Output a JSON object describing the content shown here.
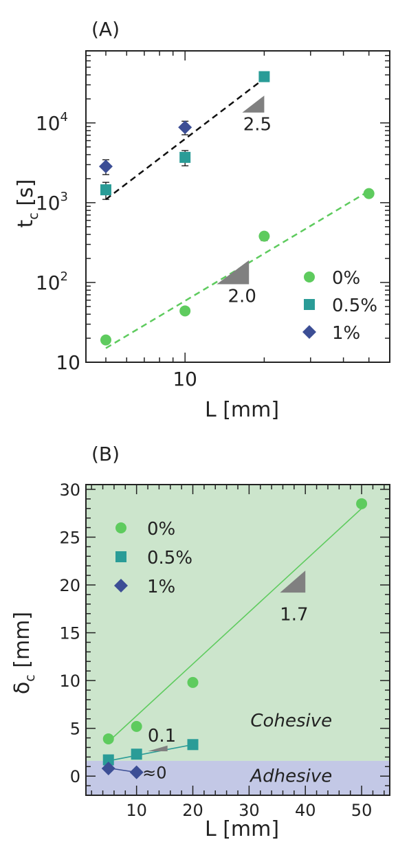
{
  "chart_data": [
    {
      "panel": "(A)",
      "type": "scatter",
      "xscale": "log",
      "yscale": "log",
      "xlabel": "L [mm]",
      "ylabel": {
        "main": "t",
        "sub": "c",
        "unit": " [s]"
      },
      "xlim": [
        4.2,
        60
      ],
      "ylim": [
        10,
        80000
      ],
      "xtick_labels": [
        {
          "value": 10,
          "label": "10"
        }
      ],
      "ytick_labels": [
        {
          "value": 10,
          "label": "10",
          "exp": ""
        },
        {
          "value": 100,
          "label": "10",
          "exp": "2"
        },
        {
          "value": 1000,
          "label": "10",
          "exp": "3"
        },
        {
          "value": 10000,
          "label": "10",
          "exp": "4"
        }
      ],
      "legend_position": "lower-right",
      "series": [
        {
          "name": "0%",
          "color": "#5ecb5e",
          "marker": "circle",
          "points": [
            {
              "x": 5,
              "y": 19
            },
            {
              "x": 10,
              "y": 44
            },
            {
              "x": 20,
              "y": 380,
              "err": 45
            },
            {
              "x": 50,
              "y": 1300
            }
          ]
        },
        {
          "name": "0.5%",
          "color": "#2a9c97",
          "marker": "square",
          "points": [
            {
              "x": 5,
              "y": 1450,
              "err": 350
            },
            {
              "x": 10,
              "y": 3700,
              "err": 800
            },
            {
              "x": 20,
              "y": 38000
            }
          ]
        },
        {
          "name": "1%",
          "color": "#3c4e95",
          "marker": "diamond",
          "points": [
            {
              "x": 5,
              "y": 2850,
              "err": 600
            },
            {
              "x": 10,
              "y": 8800,
              "err": 1700
            }
          ]
        }
      ],
      "fits": [
        {
          "color": "#111111",
          "from": [
            5,
            1100
          ],
          "to": [
            20,
            36000
          ]
        },
        {
          "color": "#5ecb5e",
          "from": [
            5,
            15
          ],
          "to": [
            50,
            1400
          ]
        }
      ],
      "slopes": [
        {
          "label": "2.5",
          "corner": [
            20,
            13500
          ],
          "x_left": 16.5,
          "y_top": 22000
        },
        {
          "label": "2.0",
          "corner": [
            17.5,
            95
          ],
          "x_left": 13.2,
          "y_top": 190
        }
      ]
    },
    {
      "panel": "(B)",
      "type": "scatter",
      "xlabel": "L [mm]",
      "ylabel": {
        "main": "δ",
        "sub": "c",
        "unit": " [mm]"
      },
      "xlim": [
        1,
        55
      ],
      "ylim": [
        -2,
        30.5
      ],
      "xticks": [
        10,
        20,
        30,
        40,
        50
      ],
      "yticks": [
        0,
        5,
        10,
        15,
        20,
        25,
        30
      ],
      "legend_position": "top-left",
      "regions": [
        {
          "label": "Cohesive",
          "from": 1.6,
          "to": 30.5,
          "color": "#cce5cc"
        },
        {
          "label": "Adhesive",
          "from": -2,
          "to": 1.6,
          "color": "#c3c8e6"
        }
      ],
      "series": [
        {
          "name": "0%",
          "color": "#5ecb5e",
          "marker": "circle",
          "points": [
            {
              "x": 5,
              "y": 3.9
            },
            {
              "x": 10,
              "y": 5.2
            },
            {
              "x": 20,
              "y": 9.8
            },
            {
              "x": 50,
              "y": 28.5
            }
          ]
        },
        {
          "name": "0.5%",
          "color": "#2a9c97",
          "marker": "square",
          "points": [
            {
              "x": 5,
              "y": 1.7
            },
            {
              "x": 10,
              "y": 2.3
            },
            {
              "x": 20,
              "y": 3.3
            }
          ]
        },
        {
          "name": "1%",
          "color": "#3c4e95",
          "marker": "diamond",
          "points": [
            {
              "x": 5,
              "y": 0.8
            },
            {
              "x": 10,
              "y": 0.4
            }
          ]
        }
      ],
      "fits": [
        {
          "color": "#5ecb5e",
          "from": [
            5,
            3.6
          ],
          "to": [
            50,
            28
          ]
        },
        {
          "color": "#2a9c97",
          "from": [
            5,
            1.6
          ],
          "to": [
            20,
            3.3
          ]
        },
        {
          "color": "#3c4e95",
          "from": [
            5,
            0.85
          ],
          "to": [
            10,
            0.4
          ]
        }
      ],
      "slopes": [
        {
          "label": "1.7",
          "corner": [
            40,
            19.2
          ],
          "x_left": 35.5,
          "y_top": 21.5
        },
        {
          "label": "0.1",
          "corner": [
            15.5,
            2.6
          ],
          "x_left": 12,
          "y_top": 3.2
        }
      ],
      "annotations": [
        {
          "text": "≈0",
          "x": 12.5,
          "y": 0.4
        }
      ]
    }
  ]
}
